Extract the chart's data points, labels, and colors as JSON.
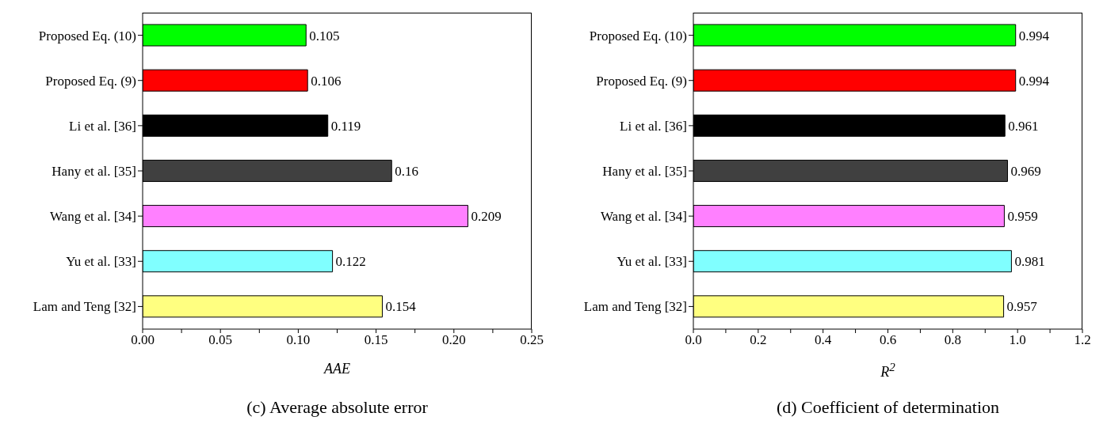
{
  "chart_data": [
    {
      "type": "bar",
      "orientation": "horizontal",
      "title": "(c) Average absolute error",
      "xlabel": "AAE",
      "categories": [
        "Proposed Eq. (10)",
        "Proposed Eq. (9)",
        "Li et al. [36]",
        "Hany et al. [35]",
        "Wang et al. [34]",
        "Yu et al. [33]",
        "Lam and Teng [32]"
      ],
      "values": [
        0.105,
        0.106,
        0.119,
        0.16,
        0.209,
        0.122,
        0.154
      ],
      "colors": [
        "#00ff00",
        "#ff0000",
        "#000000",
        "#404040",
        "#ff80ff",
        "#80ffff",
        "#ffff80"
      ],
      "xlim": [
        0,
        0.25
      ],
      "xticks": [
        {
          "value": 0,
          "label": "0.00"
        },
        {
          "value": 0.025,
          "label": null
        },
        {
          "value": 0.05,
          "label": "0.05"
        },
        {
          "value": 0.075,
          "label": null
        },
        {
          "value": 0.1,
          "label": "0.10"
        },
        {
          "value": 0.125,
          "label": null
        },
        {
          "value": 0.15,
          "label": "0.15"
        },
        {
          "value": 0.175,
          "label": null
        },
        {
          "value": 0.2,
          "label": "0.20"
        },
        {
          "value": 0.225,
          "label": null
        },
        {
          "value": 0.25,
          "label": "0.25"
        }
      ],
      "data_labels": true,
      "grid": false,
      "legend": false
    },
    {
      "type": "bar",
      "orientation": "horizontal",
      "title": "(d) Coefficient of determination",
      "xlabel": "R$^{2}$",
      "categories": [
        "Proposed Eq. (10)",
        "Proposed Eq. (9)",
        "Li et al. [36]",
        "Hany et al. [35]",
        "Wang et al. [34]",
        "Yu et al. [33]",
        "Lam and Teng [32]"
      ],
      "values": [
        0.994,
        0.994,
        0.961,
        0.969,
        0.959,
        0.981,
        0.957
      ],
      "colors": [
        "#00ff00",
        "#ff0000",
        "#000000",
        "#404040",
        "#ff80ff",
        "#80ffff",
        "#ffff80"
      ],
      "xlim": [
        0,
        1.2
      ],
      "xticks": [
        {
          "value": 0,
          "label": "0.0"
        },
        {
          "value": 0.1,
          "label": null
        },
        {
          "value": 0.2,
          "label": "0.2"
        },
        {
          "value": 0.3,
          "label": null
        },
        {
          "value": 0.4,
          "label": "0.4"
        },
        {
          "value": 0.5,
          "label": null
        },
        {
          "value": 0.6,
          "label": "0.6"
        },
        {
          "value": 0.7,
          "label": null
        },
        {
          "value": 0.8,
          "label": "0.8"
        },
        {
          "value": 0.9,
          "label": null
        },
        {
          "value": 1.0,
          "label": "1.0"
        },
        {
          "value": 1.1,
          "label": null
        },
        {
          "value": 1.2,
          "label": "1.2"
        }
      ],
      "data_labels": true,
      "grid": false,
      "legend": false
    }
  ]
}
